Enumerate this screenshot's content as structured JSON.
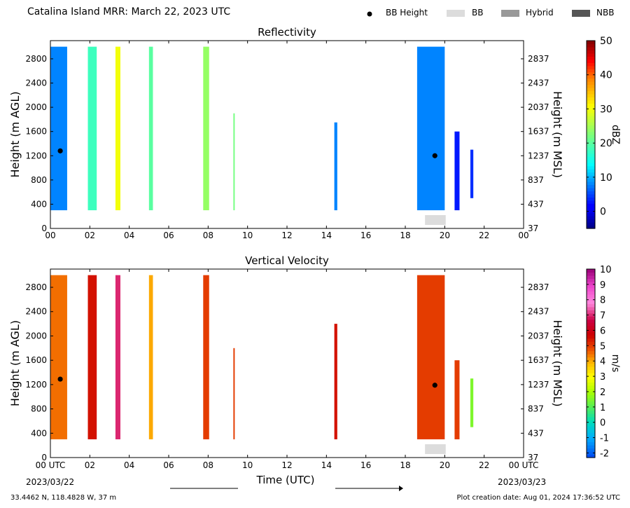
{
  "header": {
    "title": "Catalina Island MRR:  March 22, 2023 UTC",
    "legend": [
      {
        "label": "BB Height",
        "kind": "dot",
        "color": "#000000"
      },
      {
        "label": "BB",
        "kind": "box",
        "color": "#dcdcdc"
      },
      {
        "label": "Hybrid",
        "kind": "box",
        "color": "#999999"
      },
      {
        "label": "NBB",
        "kind": "box",
        "color": "#555555"
      }
    ]
  },
  "footer": {
    "location": "33.4462 N, 118.4828 W, 37 m",
    "creation": "Plot creation date: Aug 01, 2024 17:36:52 UTC",
    "xlabel": "Time (UTC)",
    "start_date": "2023/03/22",
    "end_date": "2023/03/23"
  },
  "chart_data": [
    {
      "type": "heatmap",
      "title": "Reflectivity",
      "ylabel": "Height (m AGL)",
      "ylabel_right": "Height (m MSL)",
      "colorbar_label": "dBZ",
      "xlim": [
        0,
        24
      ],
      "ylim": [
        0,
        3100
      ],
      "x_ticks": [
        "00",
        "02",
        "04",
        "06",
        "08",
        "10",
        "12",
        "14",
        "16",
        "18",
        "20",
        "22",
        "00"
      ],
      "y_ticks": [
        0,
        400,
        800,
        1200,
        1600,
        2000,
        2400,
        2800
      ],
      "y_ticks_right": [
        37,
        437,
        837,
        1237,
        1637,
        2037,
        2437,
        2837
      ],
      "colorbar_ticks": [
        0,
        10,
        20,
        30,
        40,
        50
      ],
      "colorbar_range": [
        -5,
        50
      ],
      "bright_band_heights": [
        {
          "time": 0.5,
          "height": 1280
        },
        {
          "time": 19.5,
          "height": 1200
        }
      ],
      "bb_classification": [
        {
          "start": 19.0,
          "end": 20.05,
          "class": "BB"
        }
      ],
      "echo_columns": [
        {
          "start": 0.0,
          "end": 0.85,
          "bottom": 300,
          "top": 3000,
          "value": 8
        },
        {
          "start": 1.9,
          "end": 2.35,
          "bottom": 300,
          "top": 3000,
          "value": 18
        },
        {
          "start": 3.3,
          "end": 3.55,
          "bottom": 300,
          "top": 3000,
          "value": 30
        },
        {
          "start": 5.0,
          "end": 5.2,
          "bottom": 300,
          "top": 3000,
          "value": 20
        },
        {
          "start": 7.75,
          "end": 8.05,
          "bottom": 300,
          "top": 3000,
          "value": 24
        },
        {
          "start": 9.28,
          "end": 9.35,
          "bottom": 300,
          "top": 1900,
          "value": 22
        },
        {
          "start": 14.4,
          "end": 14.55,
          "bottom": 300,
          "top": 1750,
          "value": 8
        },
        {
          "start": 18.6,
          "end": 20.0,
          "bottom": 300,
          "top": 3000,
          "value": 8
        },
        {
          "start": 20.5,
          "end": 20.75,
          "bottom": 300,
          "top": 1600,
          "value": 3
        },
        {
          "start": 21.3,
          "end": 21.45,
          "bottom": 500,
          "top": 1300,
          "value": 4
        }
      ]
    },
    {
      "type": "heatmap",
      "title": "Vertical Velocity",
      "ylabel": "Height (m AGL)",
      "ylabel_right": "Height (m MSL)",
      "colorbar_label": "m/s",
      "xlim": [
        0,
        24
      ],
      "ylim": [
        0,
        3100
      ],
      "x_ticks": [
        "00 UTC",
        "02",
        "04",
        "06",
        "08",
        "10",
        "12",
        "14",
        "16",
        "18",
        "20",
        "22",
        "00 UTC"
      ],
      "y_ticks": [
        0,
        400,
        800,
        1200,
        1600,
        2000,
        2400,
        2800
      ],
      "y_ticks_right": [
        37,
        437,
        837,
        1237,
        1637,
        2037,
        2437,
        2837
      ],
      "colorbar_ticks": [
        -2,
        -1,
        0,
        1,
        2,
        3,
        4,
        5,
        6,
        7,
        8,
        9,
        10
      ],
      "colorbar_range": [
        -2.3,
        10
      ],
      "bright_band_heights": [
        {
          "time": 0.5,
          "height": 1290
        },
        {
          "time": 19.5,
          "height": 1190
        }
      ],
      "bb_classification": [
        {
          "start": 19.0,
          "end": 20.05,
          "class": "BB"
        }
      ],
      "echo_columns": [
        {
          "start": 0.0,
          "end": 0.85,
          "bottom": 300,
          "top": 3000,
          "value": 4.5
        },
        {
          "start": 1.9,
          "end": 2.35,
          "bottom": 300,
          "top": 3000,
          "value": 5.5
        },
        {
          "start": 3.3,
          "end": 3.55,
          "bottom": 300,
          "top": 3000,
          "value": 7
        },
        {
          "start": 5.0,
          "end": 5.2,
          "bottom": 300,
          "top": 3000,
          "value": 4
        },
        {
          "start": 7.75,
          "end": 8.05,
          "bottom": 300,
          "top": 3000,
          "value": 5
        },
        {
          "start": 9.28,
          "end": 9.35,
          "bottom": 300,
          "top": 1800,
          "value": 5
        },
        {
          "start": 14.4,
          "end": 14.55,
          "bottom": 300,
          "top": 2200,
          "value": 5.5
        },
        {
          "start": 18.6,
          "end": 20.0,
          "bottom": 300,
          "top": 3000,
          "value": 5
        },
        {
          "start": 20.5,
          "end": 20.75,
          "bottom": 300,
          "top": 1600,
          "value": 5
        },
        {
          "start": 21.3,
          "end": 21.45,
          "bottom": 500,
          "top": 1300,
          "value": 1.5
        }
      ]
    }
  ]
}
